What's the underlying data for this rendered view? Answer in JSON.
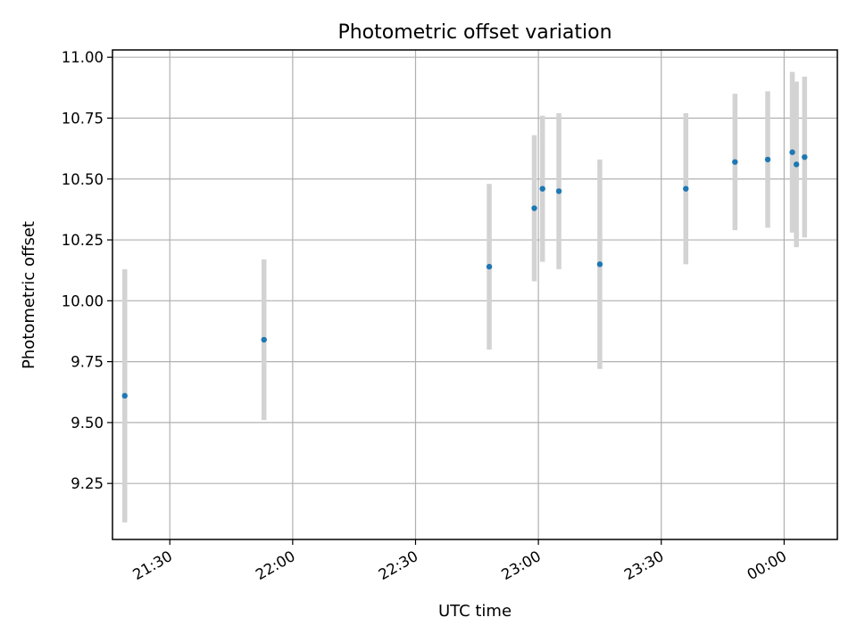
{
  "chart_data": {
    "type": "scatter",
    "title": "Photometric offset variation",
    "xlabel": "UTC time",
    "ylabel": "Photometric offset",
    "x_format": "time HH:MM (UTC), day rolls over at midnight",
    "x_tick_labels": [
      "21:30",
      "22:00",
      "22:30",
      "23:00",
      "23:30",
      "00:00"
    ],
    "y_tick_labels": [
      "9.25",
      "9.50",
      "9.75",
      "10.00",
      "10.25",
      "10.50",
      "10.75",
      "11.00"
    ],
    "ylim": [
      9.02,
      11.03
    ],
    "xlim": [
      "21:16",
      "00:13"
    ],
    "grid": true,
    "colors": {
      "point": "#1f77b4",
      "errorbar": "#d3d3d3"
    },
    "series": [
      {
        "points": [
          {
            "x": "21:19",
            "y": 9.61,
            "yerr": 0.52
          },
          {
            "x": "21:53",
            "y": 9.84,
            "yerr": 0.33
          },
          {
            "x": "22:48",
            "y": 10.14,
            "yerr": 0.34
          },
          {
            "x": "22:59",
            "y": 10.38,
            "yerr": 0.3
          },
          {
            "x": "23:01",
            "y": 10.46,
            "yerr": 0.3
          },
          {
            "x": "23:05",
            "y": 10.45,
            "yerr": 0.32
          },
          {
            "x": "23:15",
            "y": 10.15,
            "yerr": 0.43
          },
          {
            "x": "23:36",
            "y": 10.46,
            "yerr": 0.31
          },
          {
            "x": "23:48",
            "y": 10.57,
            "yerr": 0.28
          },
          {
            "x": "23:56",
            "y": 10.58,
            "yerr": 0.28
          },
          {
            "x": "00:02",
            "y": 10.61,
            "yerr": 0.33
          },
          {
            "x": "00:03",
            "y": 10.56,
            "yerr": 0.34
          },
          {
            "x": "00:05",
            "y": 10.59,
            "yerr": 0.33
          }
        ]
      }
    ]
  }
}
